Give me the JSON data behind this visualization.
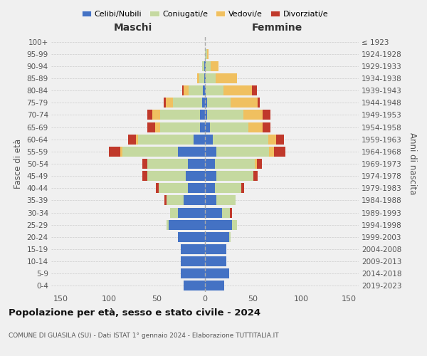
{
  "age_groups": [
    "0-4",
    "5-9",
    "10-14",
    "15-19",
    "20-24",
    "25-29",
    "30-34",
    "35-39",
    "40-44",
    "45-49",
    "50-54",
    "55-59",
    "60-64",
    "65-69",
    "70-74",
    "75-79",
    "80-84",
    "85-89",
    "90-94",
    "95-99",
    "100+"
  ],
  "birth_years": [
    "2019-2023",
    "2014-2018",
    "2009-2013",
    "2004-2008",
    "1999-2003",
    "1994-1998",
    "1989-1993",
    "1984-1988",
    "1979-1983",
    "1974-1978",
    "1969-1973",
    "1964-1968",
    "1959-1963",
    "1954-1958",
    "1949-1953",
    "1944-1948",
    "1939-1943",
    "1934-1938",
    "1929-1933",
    "1924-1928",
    "≤ 1923"
  ],
  "maschi": {
    "celibi": [
      22,
      25,
      25,
      25,
      28,
      38,
      28,
      22,
      18,
      20,
      18,
      28,
      12,
      5,
      5,
      3,
      2,
      1,
      1,
      0,
      0
    ],
    "coniugati": [
      0,
      0,
      0,
      0,
      0,
      2,
      8,
      18,
      30,
      40,
      42,
      58,
      58,
      42,
      42,
      30,
      15,
      5,
      2,
      0,
      0
    ],
    "vedovi": [
      0,
      0,
      0,
      0,
      0,
      0,
      0,
      0,
      0,
      0,
      0,
      2,
      2,
      5,
      8,
      8,
      5,
      2,
      0,
      0,
      0
    ],
    "divorziati": [
      0,
      0,
      0,
      0,
      0,
      0,
      0,
      2,
      3,
      5,
      5,
      12,
      8,
      8,
      5,
      2,
      2,
      0,
      0,
      0,
      0
    ]
  },
  "femmine": {
    "nubili": [
      20,
      25,
      22,
      22,
      25,
      28,
      18,
      12,
      10,
      12,
      10,
      12,
      8,
      5,
      2,
      2,
      1,
      1,
      1,
      0,
      0
    ],
    "coniugate": [
      0,
      0,
      0,
      0,
      2,
      5,
      8,
      20,
      28,
      38,
      42,
      55,
      58,
      40,
      38,
      25,
      18,
      10,
      5,
      2,
      0
    ],
    "vedove": [
      0,
      0,
      0,
      0,
      0,
      0,
      0,
      0,
      0,
      0,
      2,
      5,
      8,
      15,
      20,
      28,
      30,
      22,
      8,
      2,
      0
    ],
    "divorziate": [
      0,
      0,
      0,
      0,
      0,
      0,
      2,
      0,
      3,
      5,
      5,
      12,
      8,
      8,
      8,
      2,
      5,
      0,
      0,
      0,
      0
    ]
  },
  "colors": {
    "celibi": "#4472c4",
    "coniugati": "#c5d9a0",
    "vedovi": "#f0c060",
    "divorziati": "#c0392b"
  },
  "title": "Popolazione per età, sesso e stato civile - 2024",
  "subtitle": "COMUNE DI GUASILA (SU) - Dati ISTAT 1° gennaio 2024 - Elaborazione TUTTITALIA.IT",
  "xlabel_left": "Maschi",
  "xlabel_right": "Femmine",
  "ylabel_left": "Fasce di età",
  "ylabel_right": "Anni di nascita",
  "xlim": 160,
  "legend_labels": [
    "Celibi/Nubili",
    "Coniugati/e",
    "Vedovi/e",
    "Divorziati/e"
  ],
  "background_color": "#f0f0f0"
}
